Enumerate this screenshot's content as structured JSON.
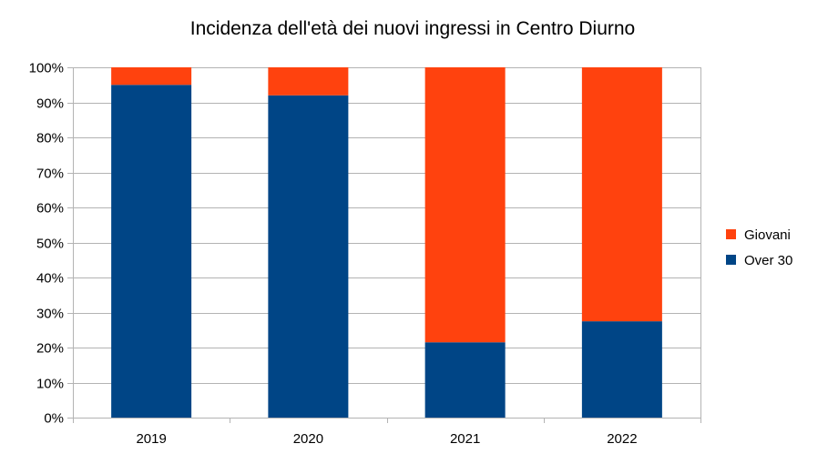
{
  "chart_data": {
    "type": "bar",
    "stacked": true,
    "title": "Incidenza dell'età dei nuovi ingressi in Centro Diurno",
    "xlabel": "",
    "ylabel": "",
    "categories": [
      "2019",
      "2020",
      "2021",
      "2022"
    ],
    "series": [
      {
        "name": "Over 30",
        "color": "#004586",
        "values": [
          0.95,
          0.92,
          0.215,
          0.275
        ]
      },
      {
        "name": "Giovani",
        "color": "#ff420e",
        "values": [
          0.05,
          0.08,
          0.785,
          0.725
        ]
      }
    ],
    "ylim": [
      0,
      1
    ],
    "yticks": [
      0,
      0.1,
      0.2,
      0.3,
      0.4,
      0.5,
      0.6,
      0.7,
      0.8,
      0.9,
      1.0
    ],
    "ytick_labels": [
      "0%",
      "10%",
      "20%",
      "30%",
      "40%",
      "50%",
      "60%",
      "70%",
      "80%",
      "90%",
      "100%"
    ],
    "grid": true,
    "legend": {
      "position": "right",
      "entries": [
        {
          "label": "Giovani",
          "color": "#ff420e"
        },
        {
          "label": "Over 30",
          "color": "#004586"
        }
      ]
    }
  }
}
